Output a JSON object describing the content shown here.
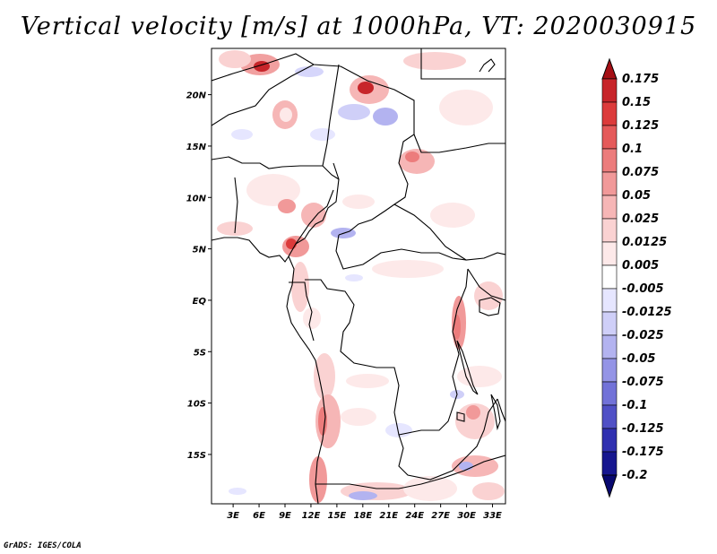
{
  "title": "Vertical velocity [m/s] at 1000hPa, VT: 2020030915",
  "footer": "GrADS: IGES/COLA",
  "map": {
    "lat_labels": [
      {
        "label": "20N",
        "lat": 20
      },
      {
        "label": "15N",
        "lat": 15
      },
      {
        "label": "10N",
        "lat": 10
      },
      {
        "label": "5N",
        "lat": 5
      },
      {
        "label": "EQ",
        "lat": 0
      },
      {
        "label": "5S",
        "lat": -5
      },
      {
        "label": "10S",
        "lat": -10
      },
      {
        "label": "15S",
        "lat": -15
      }
    ],
    "lon_labels": [
      {
        "label": "3E",
        "lon": 3
      },
      {
        "label": "6E",
        "lon": 6
      },
      {
        "label": "9E",
        "lon": 9
      },
      {
        "label": "12E",
        "lon": 12
      },
      {
        "label": "15E",
        "lon": 15
      },
      {
        "label": "18E",
        "lon": 18
      },
      {
        "label": "21E",
        "lon": 21
      },
      {
        "label": "24E",
        "lon": 24
      },
      {
        "label": "27E",
        "lon": 27
      },
      {
        "label": "30E",
        "lon": 30
      },
      {
        "label": "33E",
        "lon": 33
      }
    ]
  },
  "colorbar": {
    "labels": [
      "0.175",
      "0.15",
      "0.125",
      "0.1",
      "0.075",
      "0.05",
      "0.025",
      "0.0125",
      "0.005",
      "-0.005",
      "-0.0125",
      "-0.025",
      "-0.05",
      "-0.075",
      "-0.1",
      "-0.125",
      "-0.175",
      "-0.2"
    ],
    "colors": [
      "#a50f15",
      "#c7252a",
      "#dc3b3b",
      "#e55a5a",
      "#ec7c7c",
      "#f19999",
      "#f6b6b6",
      "#fad2d2",
      "#fde9e9",
      "#ffffff",
      "#e6e6ff",
      "#cfcff8",
      "#b3b3f0",
      "#9494e6",
      "#7272d8",
      "#5050c6",
      "#3030b0",
      "#16168f",
      "#080870"
    ]
  }
}
